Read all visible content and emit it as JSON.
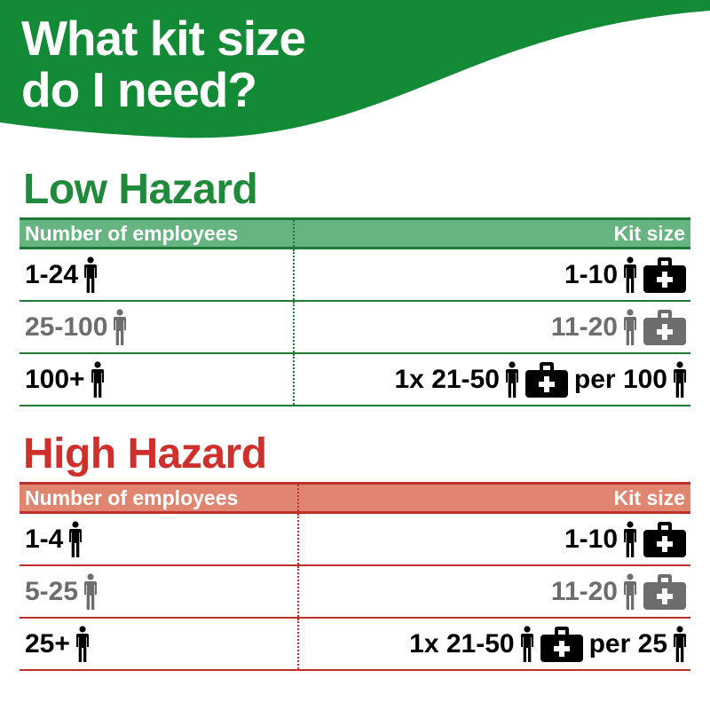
{
  "title_line1": "What kit size",
  "title_line2": "do I need?",
  "colors": {
    "green": "#138a36",
    "green_header": "#66b47f",
    "green_line": "#1e7a35",
    "red": "#d0302b",
    "red_header": "#e08670",
    "grey": "#6d6d6d"
  },
  "icons": [
    "person-icon",
    "first-aid-kit-icon"
  ],
  "low": {
    "title": "Low Hazard",
    "col1": "Number of employees",
    "col2": "Kit size",
    "rows": [
      {
        "employees": "1-24",
        "kit": "1-10",
        "suffix": "",
        "style": "black"
      },
      {
        "employees": "25-100",
        "kit": "11-20",
        "suffix": "",
        "style": "grey"
      },
      {
        "employees": "100+",
        "kit": "1x 21-50",
        "suffix": "per 100",
        "style": "black"
      }
    ]
  },
  "high": {
    "title": "High Hazard",
    "col1": "Number of employees",
    "col2": "Kit size",
    "rows": [
      {
        "employees": "1-4",
        "kit": "1-10",
        "suffix": "",
        "style": "black"
      },
      {
        "employees": "5-25",
        "kit": "11-20",
        "suffix": "",
        "style": "grey"
      },
      {
        "employees": "25+",
        "kit": "1x 21-50",
        "suffix": "per 25",
        "style": "black"
      }
    ]
  }
}
